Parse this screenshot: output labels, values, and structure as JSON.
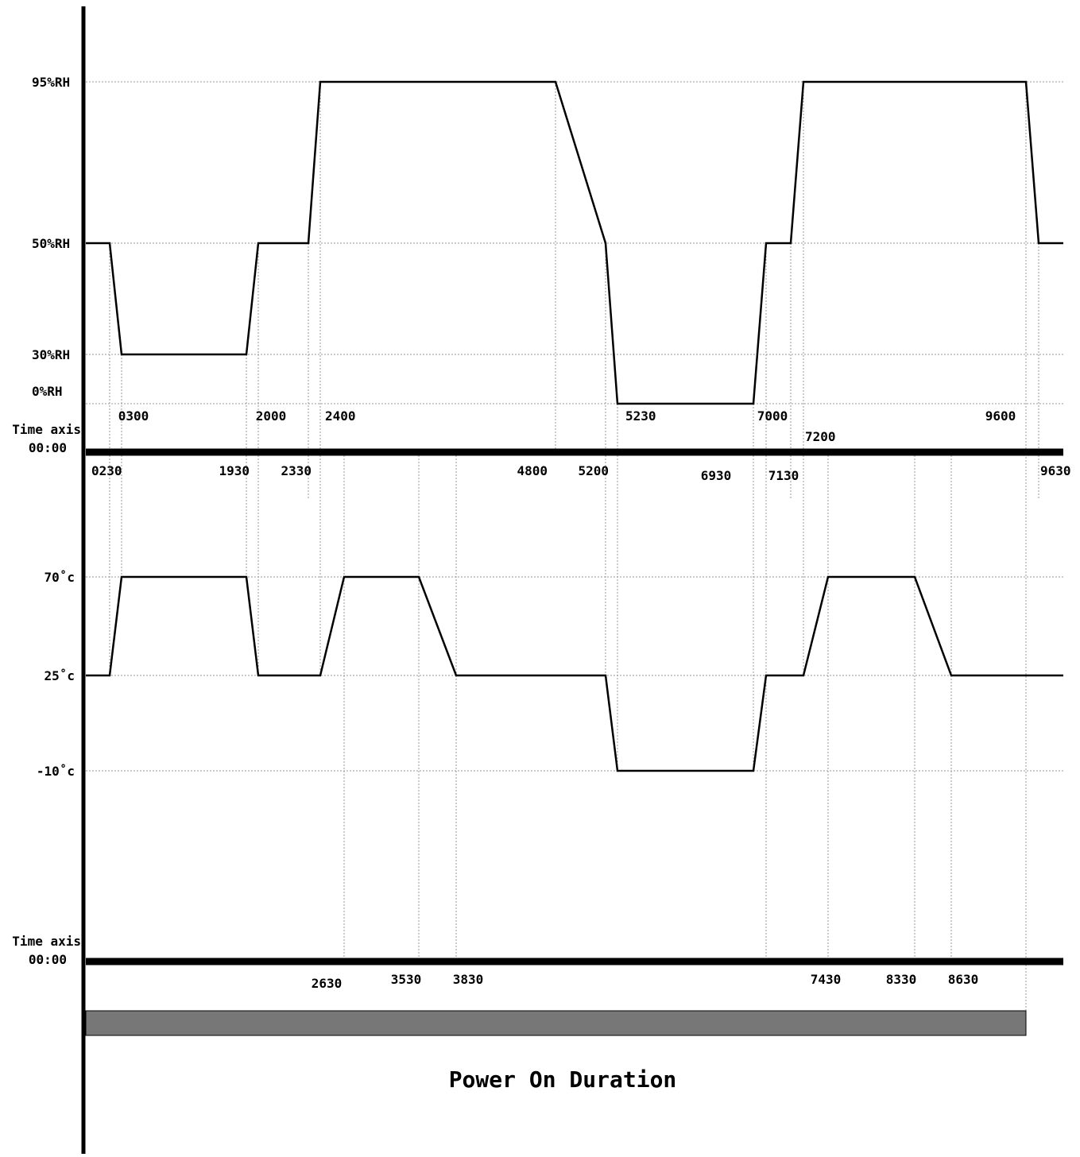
{
  "chart_data": [
    {
      "type": "line",
      "name": "humidity-profile",
      "y_tick_labels": [
        "95%RH",
        "50%RH",
        "30%RH",
        "0%RH"
      ],
      "y_tick_values": [
        95,
        50,
        30,
        0
      ],
      "time_axis_label_line1": "Time axis",
      "time_axis_label_line2": "00:00",
      "points": [
        {
          "t": 0,
          "v": 50
        },
        {
          "t": 230,
          "v": 50
        },
        {
          "t": 300,
          "v": 30
        },
        {
          "t": 1930,
          "v": 30
        },
        {
          "t": 2000,
          "v": 50
        },
        {
          "t": 2330,
          "v": 50
        },
        {
          "t": 2400,
          "v": 95
        },
        {
          "t": 4800,
          "v": 95
        },
        {
          "t": 5200,
          "v": 50
        },
        {
          "t": 5230,
          "v": 0
        },
        {
          "t": 6930,
          "v": 0
        },
        {
          "t": 7000,
          "v": 50
        },
        {
          "t": 7130,
          "v": 50
        },
        {
          "t": 7200,
          "v": 95
        },
        {
          "t": 9600,
          "v": 95
        },
        {
          "t": 9630,
          "v": 50
        },
        {
          "t": 9700,
          "v": 50
        }
      ],
      "labels_above_axis": [
        "0300",
        "2000",
        "2400",
        "5230",
        "7000",
        "9600"
      ],
      "label_7200": "7200",
      "labels_below_axis": [
        "0230",
        "1930",
        "2330",
        "4800",
        "5200",
        "6930",
        "7130",
        "9630"
      ]
    },
    {
      "type": "line",
      "name": "temperature-profile",
      "y_tick_labels": [
        "70˚c",
        "25˚c",
        "-10˚c"
      ],
      "y_tick_values": [
        70,
        25,
        -10
      ],
      "time_axis_label_line1": "Time axis",
      "time_axis_label_line2": "00:00",
      "points": [
        {
          "t": 0,
          "v": 25
        },
        {
          "t": 230,
          "v": 25
        },
        {
          "t": 300,
          "v": 70
        },
        {
          "t": 1930,
          "v": 70
        },
        {
          "t": 2000,
          "v": 25
        },
        {
          "t": 2400,
          "v": 25
        },
        {
          "t": 2630,
          "v": 70
        },
        {
          "t": 3530,
          "v": 70
        },
        {
          "t": 3830,
          "v": 25
        },
        {
          "t": 5200,
          "v": 25
        },
        {
          "t": 5230,
          "v": -10
        },
        {
          "t": 6930,
          "v": -10
        },
        {
          "t": 7000,
          "v": 25
        },
        {
          "t": 7200,
          "v": 25
        },
        {
          "t": 7430,
          "v": 70
        },
        {
          "t": 8330,
          "v": 70
        },
        {
          "t": 8630,
          "v": 25
        },
        {
          "t": 9700,
          "v": 25
        }
      ],
      "labels_below_axis": [
        "2630",
        "3530",
        "3830",
        "7430",
        "8330",
        "8630"
      ]
    }
  ],
  "power_bar": {
    "start": "0000",
    "end": "9600",
    "title": "Power On Duration",
    "color": "#777777"
  }
}
